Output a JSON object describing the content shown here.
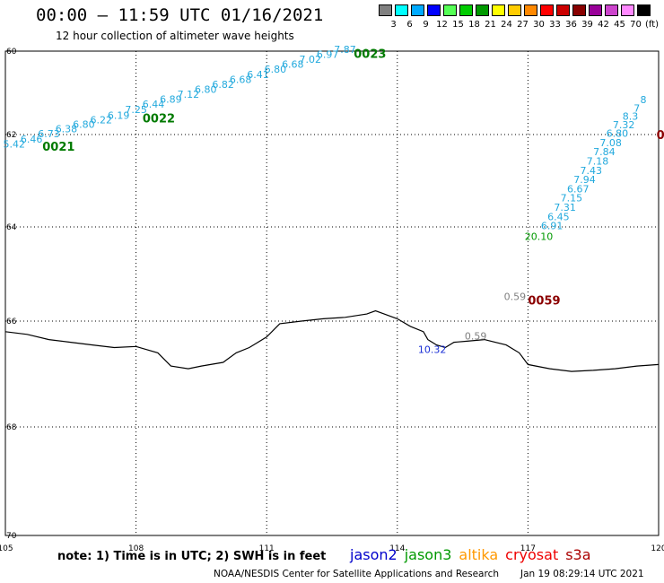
{
  "header": {
    "title": "00:00 – 11:59 UTC 01/16/2021",
    "subtitle": "12 hour collection of altimeter wave heights"
  },
  "color_scale": {
    "labels": [
      "3",
      "6",
      "9",
      "12",
      "15",
      "18",
      "21",
      "24",
      "27",
      "30",
      "33",
      "36",
      "39",
      "42",
      "45",
      "70",
      "(ft)"
    ],
    "colors": [
      "#808080",
      "#00ffff",
      "#00aaff",
      "#0000ff",
      "#55ff55",
      "#00cc00",
      "#009900",
      "#ffff00",
      "#ffcc00",
      "#ff8800",
      "#ff0000",
      "#cc0000",
      "#880000",
      "#990099",
      "#cc44cc",
      "#ff88ff",
      "#000000"
    ]
  },
  "map": {
    "lon_labels": [
      "105",
      "108",
      "111",
      "114",
      "117",
      "120"
    ],
    "lat_labels": [
      "60",
      "62",
      "64",
      "66",
      "68",
      "70"
    ],
    "coastline": [
      [
        -105,
        66.2
      ],
      [
        -105.5,
        66.25
      ],
      [
        -106,
        66.35
      ],
      [
        -106.5,
        66.4
      ],
      [
        -107,
        66.45
      ],
      [
        -107.5,
        66.5
      ],
      [
        -108,
        66.48
      ],
      [
        -108.5,
        66.6
      ],
      [
        -108.8,
        66.85
      ],
      [
        -109.2,
        66.9
      ],
      [
        -109.5,
        66.85
      ],
      [
        -110,
        66.78
      ],
      [
        -110.3,
        66.6
      ],
      [
        -110.6,
        66.5
      ],
      [
        -111,
        66.3
      ],
      [
        -111.3,
        66.05
      ],
      [
        -111.8,
        66.0
      ],
      [
        -112.3,
        65.95
      ],
      [
        -112.8,
        65.92
      ],
      [
        -113.3,
        65.85
      ],
      [
        -113.5,
        65.78
      ],
      [
        -113.7,
        65.85
      ],
      [
        -114,
        65.95
      ],
      [
        -114.3,
        66.1
      ],
      [
        -114.6,
        66.2
      ],
      [
        -114.7,
        66.35
      ],
      [
        -114.9,
        66.45
      ],
      [
        -115.1,
        66.5
      ],
      [
        -115.3,
        66.4
      ],
      [
        -115.6,
        66.38
      ],
      [
        -116,
        66.35
      ],
      [
        -116.5,
        66.45
      ],
      [
        -116.8,
        66.6
      ],
      [
        -117,
        66.82
      ],
      [
        -117.5,
        66.9
      ],
      [
        -118,
        66.95
      ],
      [
        -118.5,
        66.93
      ],
      [
        -119,
        66.9
      ],
      [
        -119.5,
        66.85
      ],
      [
        -120,
        66.82
      ]
    ],
    "tracks": [
      {
        "label": "0021",
        "label_color": "#007a00",
        "label_lon": -105.85,
        "label_lat": 62.25,
        "points": [
          [
            "5.42",
            -105.2,
            62.28
          ],
          [
            "6.46",
            -105.6,
            62.17
          ],
          [
            "6.73",
            -106.0,
            62.06
          ],
          [
            "6.38",
            -106.4,
            61.95
          ],
          [
            "6.80",
            -106.8,
            61.84
          ],
          [
            "6.22",
            -107.2,
            61.73
          ],
          [
            "6.19",
            -107.6,
            61.62
          ],
          [
            "7.25",
            -108.0,
            61.48
          ],
          [
            "6.44",
            -108.4,
            61.36
          ],
          [
            "6.89",
            -108.8,
            61.24
          ],
          [
            "7.12",
            -109.2,
            61.12
          ],
          [
            "6.80",
            -109.6,
            61.0
          ],
          [
            "6.82",
            -110.0,
            60.88
          ],
          [
            "6.68",
            -110.4,
            60.76
          ],
          [
            "6.41",
            -110.8,
            60.64
          ],
          [
            "6.80",
            -111.2,
            60.52
          ],
          [
            "6.68",
            -111.6,
            60.4
          ],
          [
            "7.02",
            -112.0,
            60.28
          ],
          [
            "6.97",
            -112.4,
            60.16
          ],
          [
            "7.87",
            -112.8,
            60.04
          ]
        ]
      },
      {
        "label": "0022",
        "label_color": "#007a00",
        "label_lon": -108.15,
        "label_lat": 61.6,
        "points": []
      },
      {
        "label": "0023",
        "label_color": "#007a00",
        "label_lon": -113.0,
        "label_lat": 60.05,
        "points": []
      },
      {
        "label": "0059",
        "label_color": "#8b0000",
        "label_lon": -117.0,
        "label_lat": 65.55,
        "points": [
          [
            "0.59",
            -116.7,
            65.55
          ]
        ]
      },
      {
        "label": "",
        "label_color": "#007a00",
        "points": [
          [
            "20.10",
            -117.25,
            64.28
          ],
          [
            "6.91",
            -117.55,
            64.05
          ],
          [
            "6.45",
            -117.7,
            63.85
          ],
          [
            "7.31",
            -117.85,
            63.65
          ],
          [
            "7.15",
            -118.0,
            63.45
          ],
          [
            "6.67",
            -118.15,
            63.25
          ],
          [
            "7.94",
            -118.3,
            63.05
          ],
          [
            "7.43",
            -118.45,
            62.85
          ],
          [
            "7.18",
            -118.6,
            62.65
          ],
          [
            "7.84",
            -118.75,
            62.45
          ],
          [
            "7.08",
            -118.9,
            62.25
          ],
          [
            "6.80",
            -119.05,
            62.05
          ],
          [
            "7.32",
            -119.2,
            61.85
          ],
          [
            "8.3",
            -119.35,
            61.65
          ],
          [
            "7",
            -119.5,
            61.45
          ],
          [
            "8",
            -119.65,
            61.25
          ]
        ]
      },
      {
        "label": "0",
        "label_color": "#8b0000",
        "label_lon": -119.95,
        "label_lat": 62.0,
        "points": []
      }
    ],
    "coastal_points": [
      [
        "0.59",
        -115.8,
        66.35
      ],
      [
        "10.32",
        -114.8,
        66.6
      ]
    ]
  },
  "footer": {
    "note": "note:  1) Time is in UTC;  2) SWH is in feet",
    "legend": [
      {
        "name": "jason2",
        "color": "#0000cc"
      },
      {
        "name": "jason3",
        "color": "#009900"
      },
      {
        "name": "altika",
        "color": "#ff9900"
      },
      {
        "name": "cryosat",
        "color": "#ee0000"
      },
      {
        "name": "s3a",
        "color": "#aa0000"
      }
    ],
    "credit": "NOAA/NESDIS Center for Satellite Applications and Research",
    "timestamp": "Jan 19 08:29:14 UTC 2021"
  }
}
